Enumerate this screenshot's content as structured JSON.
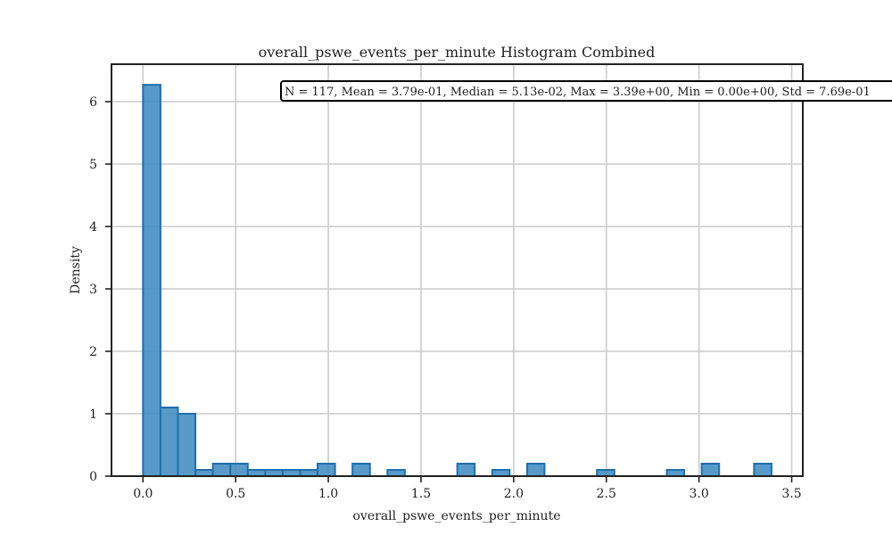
{
  "colors": {
    "bar_fill": "#3a87c0",
    "bar_edge": "#1f6fab",
    "grid": "#cccccc",
    "axes": "#222222"
  },
  "chart_data": {
    "type": "bar",
    "histogram": true,
    "title": "overall_pswe_events_per_minute Histogram Combined",
    "xlabel": "overall_pswe_events_per_minute",
    "ylabel": "Density",
    "xlim": [
      -0.17,
      3.56
    ],
    "ylim": [
      0,
      6.6
    ],
    "grid": true,
    "xticks": [
      0.0,
      0.5,
      1.0,
      1.5,
      2.0,
      2.5,
      3.0,
      3.5
    ],
    "xtick_labels": [
      "0.0",
      "0.5",
      "1.0",
      "1.5",
      "2.0",
      "2.5",
      "3.0",
      "3.5"
    ],
    "yticks": [
      0,
      1,
      2,
      3,
      4,
      5,
      6
    ],
    "ytick_labels": [
      "0",
      "1",
      "2",
      "3",
      "4",
      "5",
      "6"
    ],
    "bin_start": 0.0,
    "bin_width": 0.0942,
    "values": [
      6.27,
      1.1,
      1.0,
      0.1,
      0.2,
      0.2,
      0.1,
      0.1,
      0.1,
      0.1,
      0.2,
      0.0,
      0.2,
      0.0,
      0.1,
      0.0,
      0.0,
      0.0,
      0.2,
      0.0,
      0.1,
      0.0,
      0.2,
      0.0,
      0.0,
      0.0,
      0.1,
      0.0,
      0.0,
      0.0,
      0.1,
      0.0,
      0.2,
      0.0,
      0.0,
      0.2
    ],
    "annotation": "N = 117, Mean = 3.79e-01, Median = 5.13e-02, Max = 3.39e+00, Min = 0.00e+00, Std = 7.69e-01"
  }
}
